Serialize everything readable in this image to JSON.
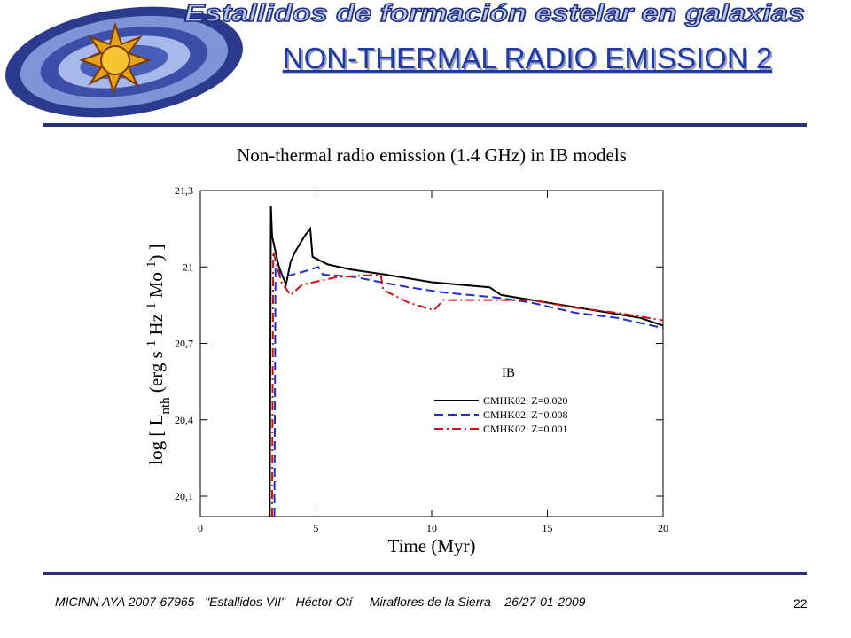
{
  "header": {
    "banner": "Estallidos de formación estelar en galaxias",
    "title": "NON-THERMAL RADIO EMISSION 2"
  },
  "chart_data": {
    "type": "line",
    "title": "Non-thermal radio emission (1.4 GHz) in IB models",
    "xlabel": "Time (Myr)",
    "ylabel": [
      {
        "text": "log [ L"
      },
      {
        "text": "nth",
        "sub": true
      },
      {
        "text": " (erg s"
      },
      {
        "text": "-1",
        "sup": true
      },
      {
        "text": " Hz"
      },
      {
        "text": "-1",
        "sup": true
      },
      {
        "text": " Mo"
      },
      {
        "text": "-1",
        "sup": true
      },
      {
        "text": ") ]"
      }
    ],
    "xlim": [
      0,
      20
    ],
    "xticks": [
      0,
      5,
      10,
      15,
      20
    ],
    "ylim": [
      20.02,
      21.3
    ],
    "yticks": [
      {
        "value": 20.1,
        "label": "20,1"
      },
      {
        "value": 20.4,
        "label": "20,4"
      },
      {
        "value": 20.7,
        "label": "20,7"
      },
      {
        "value": 21,
        "label": "21"
      },
      {
        "value": 21.3,
        "label": "21,3"
      }
    ],
    "legend_title": "IB",
    "series": [
      {
        "name": "CMHK02: Z=0.020",
        "color": "#000000",
        "dash": "solid",
        "x": [
          3.0,
          3.05,
          3.1,
          3.4,
          3.7,
          3.9,
          4.1,
          4.5,
          4.75,
          4.85,
          5.5,
          6.5,
          8,
          10,
          12.5,
          13,
          15,
          17,
          19,
          20
        ],
        "values": [
          20.02,
          21.24,
          21.12,
          21.0,
          20.93,
          21.02,
          21.06,
          21.12,
          21.15,
          21.04,
          21.01,
          20.99,
          20.97,
          20.94,
          20.92,
          20.89,
          20.86,
          20.83,
          20.8,
          20.77
        ]
      },
      {
        "name": "CMHK02: Z=0.008",
        "color": "#1f2fc8",
        "dash": "dashed",
        "x": [
          3.2,
          3.25,
          3.6,
          4.4,
          5.1,
          5.3,
          6.7,
          7.8,
          9,
          10.5,
          12.8,
          14.3,
          16.2,
          18,
          20
        ],
        "values": [
          20.02,
          21.0,
          20.96,
          20.98,
          21.0,
          20.97,
          20.96,
          20.94,
          20.92,
          20.9,
          20.88,
          20.86,
          20.82,
          20.8,
          20.76
        ]
      },
      {
        "name": "CMHK02: Z=0.001",
        "color": "#d01010",
        "dash": "dashdot",
        "x": [
          3.1,
          3.15,
          3.5,
          3.9,
          4.4,
          5.9,
          7.8,
          7.9,
          9,
          10.1,
          10.5,
          12.4,
          14.3,
          16.2,
          18,
          20
        ],
        "values": [
          20.02,
          21.06,
          20.94,
          20.89,
          20.93,
          20.96,
          20.97,
          20.91,
          20.86,
          20.83,
          20.87,
          20.87,
          20.87,
          20.84,
          20.82,
          20.79
        ]
      }
    ]
  },
  "footer": {
    "text": "MICINN AYA 2007-67965   \"Estallidos VII\"   Héctor Otí     Miraflores de la Sierra    26/27-01-2009",
    "page": "22"
  }
}
